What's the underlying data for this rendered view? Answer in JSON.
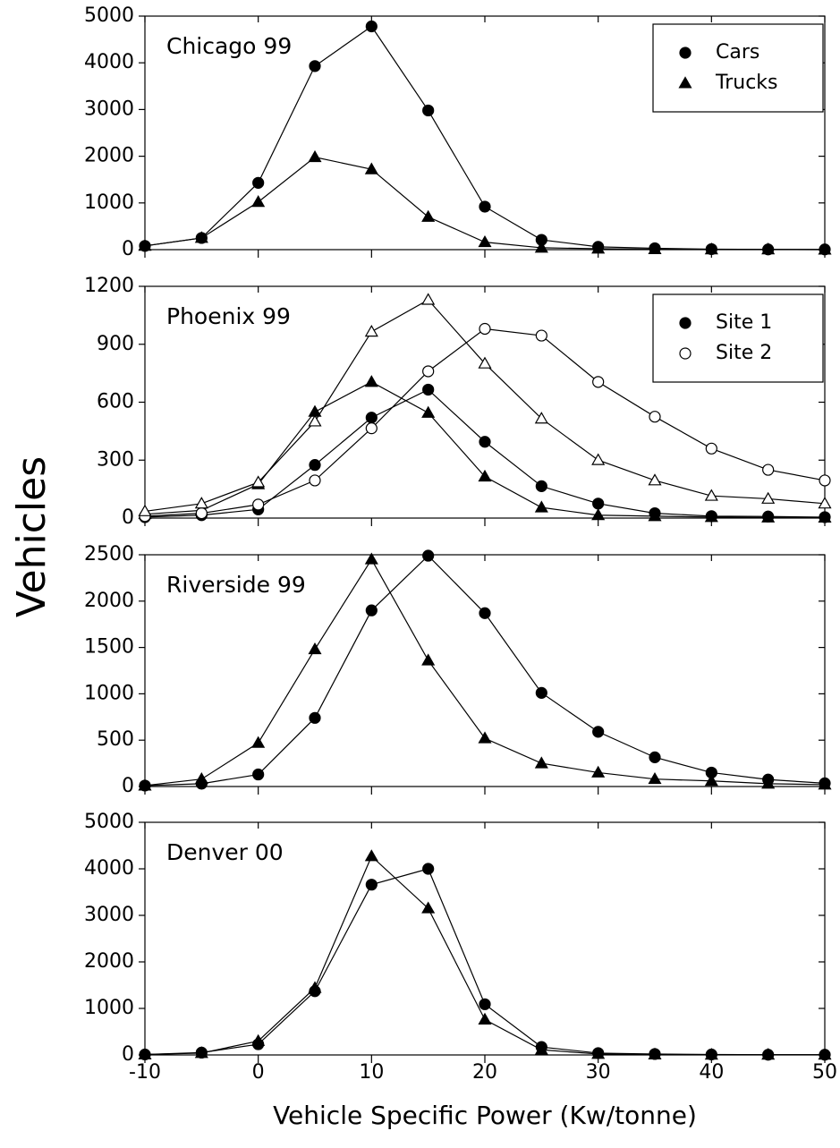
{
  "ylabel": "Vehicles",
  "xlabel": "Vehicle Specific Power (Kw/tonne)",
  "chart_data": [
    {
      "type": "line",
      "title": "Chicago 99",
      "x": [
        -10,
        -5,
        0,
        5,
        10,
        15,
        20,
        25,
        30,
        35,
        40,
        45,
        50
      ],
      "xlim": [
        -10,
        50
      ],
      "xticks": [
        -10,
        0,
        10,
        20,
        30,
        40,
        50
      ],
      "ylim": [
        0,
        5000
      ],
      "yticks": [
        0,
        1000,
        2000,
        3000,
        4000,
        5000
      ],
      "legend_position": "upper right",
      "legend": [
        {
          "label": "Cars",
          "marker": "circle",
          "fill": "filled"
        },
        {
          "label": "Trucks",
          "marker": "triangle",
          "fill": "filled"
        }
      ],
      "series": [
        {
          "marker": "circle",
          "fill": "filled",
          "color": "#000000",
          "values": [
            80,
            250,
            1430,
            3930,
            4780,
            2980,
            920,
            210,
            60,
            30,
            10,
            5,
            5
          ]
        },
        {
          "marker": "triangle",
          "fill": "filled",
          "color": "#000000",
          "values": [
            80,
            250,
            1020,
            1980,
            1720,
            700,
            160,
            40,
            20,
            10,
            5,
            5,
            0
          ]
        }
      ]
    },
    {
      "type": "line",
      "title": "Phoenix 99",
      "x": [
        -10,
        -5,
        0,
        5,
        10,
        15,
        20,
        25,
        30,
        35,
        40,
        45,
        50
      ],
      "xlim": [
        -10,
        50
      ],
      "xticks": [
        -10,
        0,
        10,
        20,
        30,
        40,
        50
      ],
      "ylim": [
        0,
        1200
      ],
      "yticks": [
        0,
        300,
        600,
        900,
        1200
      ],
      "legend_position": "upper right",
      "legend": [
        {
          "label": "Site 1",
          "marker": "circle",
          "fill": "filled"
        },
        {
          "label": "Site 2",
          "marker": "circle",
          "fill": "open"
        }
      ],
      "series": [
        {
          "marker": "circle",
          "fill": "filled",
          "color": "#000000",
          "values": [
            5,
            15,
            45,
            275,
            520,
            665,
            395,
            165,
            75,
            25,
            10,
            8,
            5
          ]
        },
        {
          "marker": "triangle",
          "fill": "filled",
          "color": "#000000",
          "values": [
            20,
            40,
            175,
            550,
            705,
            545,
            215,
            55,
            15,
            10,
            5,
            3,
            2
          ]
        },
        {
          "marker": "circle",
          "fill": "open",
          "color": "#000000",
          "values": [
            10,
            25,
            70,
            195,
            465,
            760,
            980,
            945,
            705,
            525,
            360,
            250,
            195
          ]
        },
        {
          "marker": "triangle",
          "fill": "open",
          "color": "#000000",
          "values": [
            35,
            75,
            185,
            500,
            965,
            1130,
            800,
            515,
            300,
            195,
            115,
            100,
            75
          ]
        }
      ]
    },
    {
      "type": "line",
      "title": "Riverside 99",
      "x": [
        -10,
        -5,
        0,
        5,
        10,
        15,
        20,
        25,
        30,
        35,
        40,
        45,
        50
      ],
      "xlim": [
        -10,
        50
      ],
      "xticks": [
        -10,
        0,
        10,
        20,
        30,
        40,
        50
      ],
      "ylim": [
        0,
        2500
      ],
      "yticks": [
        0,
        500,
        1000,
        1500,
        2000,
        2500
      ],
      "series": [
        {
          "marker": "circle",
          "fill": "filled",
          "color": "#000000",
          "values": [
            10,
            30,
            130,
            740,
            1900,
            2490,
            1870,
            1010,
            590,
            315,
            150,
            75,
            35
          ]
        },
        {
          "marker": "triangle",
          "fill": "filled",
          "color": "#000000",
          "values": [
            10,
            80,
            470,
            1480,
            2450,
            1360,
            520,
            250,
            150,
            80,
            60,
            30,
            20
          ]
        }
      ]
    },
    {
      "type": "line",
      "title": "Denver 00",
      "x": [
        -10,
        -5,
        0,
        5,
        10,
        15,
        20,
        25,
        30,
        35,
        40,
        45,
        50
      ],
      "xlim": [
        -10,
        50
      ],
      "xticks": [
        -10,
        0,
        10,
        20,
        30,
        40,
        50
      ],
      "ylim": [
        0,
        5000
      ],
      "yticks": [
        0,
        1000,
        2000,
        3000,
        4000,
        5000
      ],
      "series": [
        {
          "marker": "circle",
          "fill": "filled",
          "color": "#000000",
          "values": [
            10,
            50,
            230,
            1370,
            3660,
            4000,
            1090,
            170,
            40,
            20,
            10,
            5,
            5
          ]
        },
        {
          "marker": "triangle",
          "fill": "filled",
          "color": "#000000",
          "values": [
            10,
            40,
            300,
            1440,
            4270,
            3150,
            760,
            110,
            20,
            10,
            5,
            5,
            5
          ]
        }
      ]
    }
  ]
}
